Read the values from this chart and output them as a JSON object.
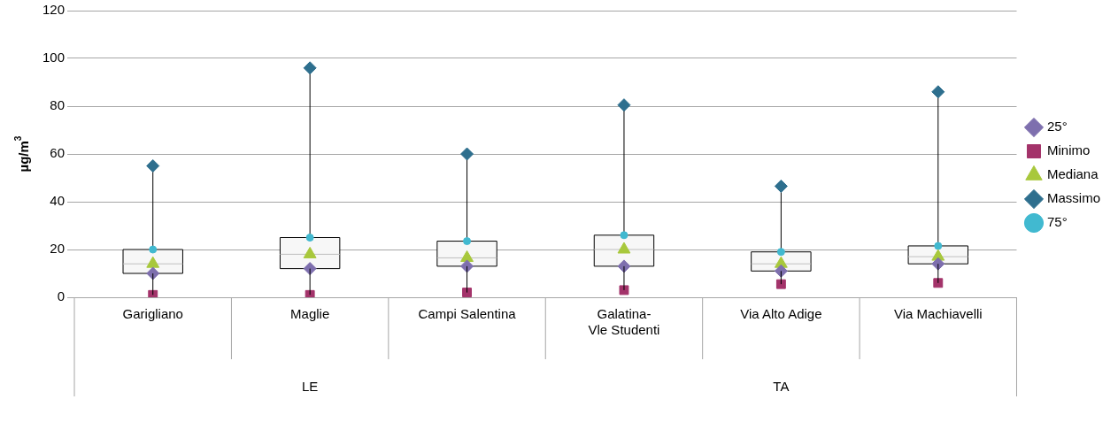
{
  "chart_data": {
    "type": "box",
    "ylabel": "µg/m$^{3}$",
    "categories": [
      "Garigliano",
      "Maglie",
      "Campi Salentina",
      "Galatina- Vle Studenti",
      "Via Alto Adige",
      "Via Machiavelli"
    ],
    "boxes": [
      {
        "low": 1,
        "q1": 10,
        "median": 14,
        "q3": 20,
        "high": 55
      },
      {
        "low": 1,
        "q1": 12,
        "median": 18,
        "q3": 25,
        "high": 96
      },
      {
        "low": 2,
        "q1": 13,
        "median": 16.5,
        "q3": 23.5,
        "high": 60
      },
      {
        "low": 3,
        "q1": 13,
        "median": 20,
        "q3": 26,
        "high": 80.5
      },
      {
        "low": 5.5,
        "q1": 11,
        "median": 14,
        "q3": 19,
        "high": 46.5
      },
      {
        "low": 6,
        "q1": 14,
        "median": 17,
        "q3": 21.5,
        "high": 86
      }
    ],
    "series": [
      {
        "name": "25°",
        "type": "scatter",
        "marker": "diamond",
        "color": "#7e6fae",
        "values": [
          10,
          12,
          13,
          13,
          11,
          14
        ]
      },
      {
        "name": "Minimo",
        "type": "scatter",
        "marker": "square",
        "color": "#a3336a",
        "values": [
          1,
          1,
          2,
          3,
          5.5,
          6
        ]
      },
      {
        "name": "Mediana",
        "type": "scatter",
        "marker": "triangle",
        "color": "#a8c83c",
        "values": [
          14,
          18,
          16.5,
          20,
          14,
          17
        ]
      },
      {
        "name": "Massimo",
        "type": "scatter",
        "marker": "diamond",
        "color": "#2e6f8e",
        "values": [
          55,
          96,
          60,
          80.5,
          46.5,
          86
        ]
      },
      {
        "name": "75°",
        "type": "scatter",
        "marker": "circle",
        "color": "#41b9d0",
        "values": [
          20,
          25,
          23.5,
          26,
          19,
          21.5
        ]
      }
    ],
    "annotations": [
      "LE",
      "TA"
    ],
    "ylim": [
      0,
      120
    ],
    "yticks": [
      0,
      20,
      40,
      60,
      80,
      100,
      120
    ],
    "grid": "y",
    "legend": "right"
  }
}
